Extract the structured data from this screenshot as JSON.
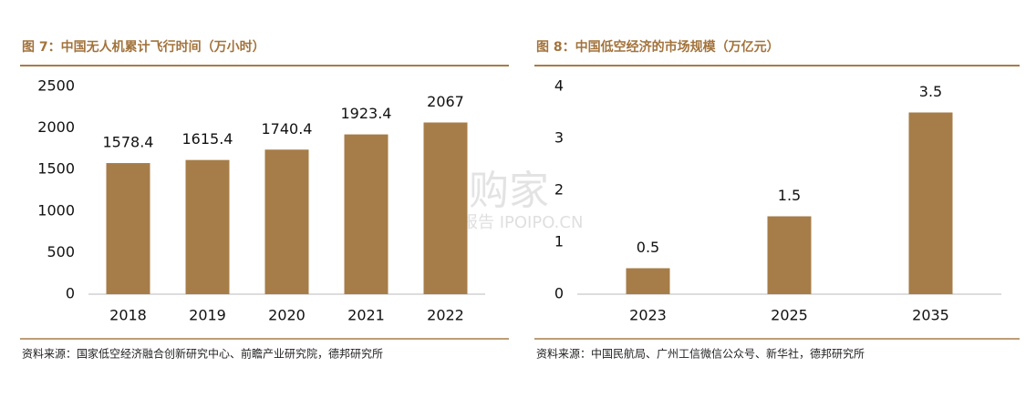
{
  "chart_data": [
    {
      "type": "bar",
      "title": "图 7：中国无人机累计飞行时间（万小时）",
      "categories": [
        "2018",
        "2019",
        "2020",
        "2021",
        "2022"
      ],
      "values": [
        1578.4,
        1615.4,
        1740.4,
        1923.4,
        2067
      ],
      "color": "#a67d48",
      "ylim": [
        0,
        2500
      ],
      "yticks": [
        0,
        500,
        1000,
        1500,
        2000,
        2500
      ],
      "source": "资料来源：国家低空经济融合创新研究中心、前瞻产业研究院，德邦研究所"
    },
    {
      "type": "bar",
      "title": "图 8：中国低空经济的市场规模（万亿元）",
      "categories": [
        "2023",
        "2025",
        "2035"
      ],
      "values": [
        0.5,
        1.5,
        3.5
      ],
      "color": "#a67d48",
      "ylim": [
        0,
        4
      ],
      "yticks": [
        0,
        1,
        2,
        3,
        4
      ],
      "source": "资料来源：中国民航局、广州工信微信公众号、新华社，德邦研究所"
    }
  ],
  "watermark": [
    "并购家",
    "行业报告 IPOIPO.CN"
  ]
}
